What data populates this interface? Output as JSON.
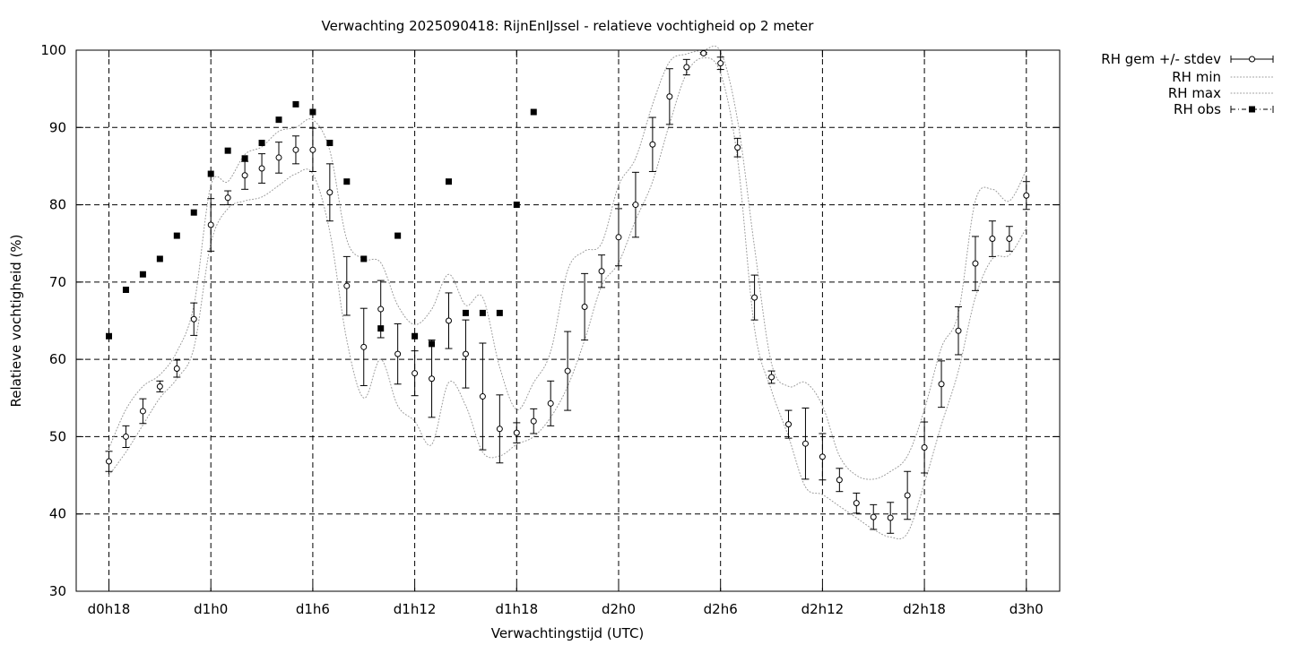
{
  "chart_data": {
    "type": "line",
    "title": "Verwachting 2025090418: RijnEnIJssel - relatieve vochtigheid op 2 meter",
    "xlabel": "Verwachtingstijd (UTC)",
    "ylabel": "Relatieve vochtigheid (%)",
    "xlim": [
      -0.5,
      57.2
    ],
    "ylim": [
      30,
      100
    ],
    "grid": true,
    "legend_position": "top-right outside plot",
    "x_ticks": [
      {
        "x": 0,
        "label": "d0h18"
      },
      {
        "x": 6,
        "label": "d1h0"
      },
      {
        "x": 12,
        "label": "d1h6"
      },
      {
        "x": 18,
        "label": "d1h12"
      },
      {
        "x": 24,
        "label": "d1h18"
      },
      {
        "x": 30,
        "label": "d2h0"
      },
      {
        "x": 36,
        "label": "d2h6"
      },
      {
        "x": 42,
        "label": "d2h12"
      },
      {
        "x": 48,
        "label": "d2h18"
      },
      {
        "x": 54,
        "label": "d3h0"
      }
    ],
    "y_ticks": [
      30,
      40,
      50,
      60,
      70,
      80,
      90,
      100
    ],
    "series": [
      {
        "name": "RH gem +/- stdev",
        "style": "errorbar",
        "x": [
          0,
          1,
          2,
          3,
          4,
          5,
          6,
          7,
          8,
          9,
          10,
          11,
          12,
          13,
          14,
          15,
          16,
          17,
          18,
          19,
          20,
          21,
          22,
          23,
          24,
          25,
          26,
          27,
          28,
          29,
          30,
          31,
          32,
          33,
          34,
          35,
          36,
          37,
          38,
          39,
          40,
          41,
          42,
          43,
          44,
          45,
          46,
          47,
          48,
          49,
          50,
          51,
          52,
          53,
          54
        ],
        "mean": [
          46.8,
          50.0,
          53.3,
          56.5,
          58.8,
          65.2,
          77.4,
          80.9,
          83.8,
          84.7,
          86.1,
          87.1,
          87.1,
          81.6,
          69.5,
          61.6,
          66.5,
          60.7,
          58.2,
          57.5,
          65.0,
          60.7,
          55.2,
          51.0,
          50.5,
          52.0,
          54.3,
          58.5,
          66.8,
          71.4,
          75.8,
          80.0,
          87.8,
          94.0,
          97.8,
          99.6,
          98.3,
          87.4,
          68.0,
          57.7,
          51.6,
          49.1,
          47.4,
          44.4,
          41.4,
          39.6,
          39.5,
          42.4,
          48.6,
          56.8,
          63.7,
          72.4,
          75.6,
          75.6,
          81.2
        ],
        "stdev": [
          1.3,
          1.4,
          1.6,
          0.7,
          1.1,
          2.1,
          3.4,
          0.9,
          1.8,
          1.9,
          2.0,
          1.8,
          2.8,
          3.7,
          3.8,
          5.0,
          3.7,
          3.9,
          2.9,
          5.0,
          3.6,
          4.4,
          6.9,
          4.4,
          1.3,
          1.6,
          2.9,
          5.1,
          4.3,
          2.1,
          3.7,
          4.2,
          3.5,
          3.6,
          1.0,
          0.1,
          0.8,
          1.2,
          2.9,
          0.8,
          1.8,
          4.6,
          3.0,
          1.5,
          1.3,
          1.6,
          2.0,
          3.1,
          3.3,
          3.0,
          3.1,
          3.5,
          2.3,
          1.6,
          1.8
        ]
      },
      {
        "name": "RH min",
        "style": "dotted",
        "x": [
          0,
          1,
          2,
          3,
          4,
          5,
          6,
          7,
          8,
          9,
          10,
          11,
          12,
          13,
          14,
          15,
          16,
          17,
          18,
          19,
          20,
          21,
          22,
          23,
          24,
          25,
          26,
          27,
          28,
          29,
          30,
          31,
          32,
          33,
          34,
          35,
          36,
          37,
          38,
          39,
          40,
          41,
          42,
          43,
          44,
          45,
          46,
          47,
          48,
          49,
          50,
          51,
          52,
          53,
          54
        ],
        "values": [
          45.0,
          48.0,
          51.5,
          55.0,
          57.5,
          61.5,
          75.0,
          79.5,
          80.5,
          81.0,
          82.5,
          84.0,
          84.0,
          76.5,
          62.5,
          55.0,
          60.0,
          54.0,
          52.0,
          49.0,
          57.0,
          54.0,
          48.0,
          47.5,
          49.0,
          50.0,
          52.5,
          56.5,
          62.5,
          69.5,
          72.5,
          78.0,
          83.0,
          90.5,
          97.0,
          99.0,
          97.0,
          86.0,
          64.0,
          56.0,
          50.0,
          43.5,
          42.5,
          41.0,
          39.5,
          38.0,
          37.0,
          37.5,
          44.0,
          51.5,
          58.5,
          68.0,
          73.0,
          73.5,
          77.0
        ]
      },
      {
        "name": "RH max",
        "style": "dotted",
        "x": [
          0,
          1,
          2,
          3,
          4,
          5,
          6,
          7,
          8,
          9,
          10,
          11,
          12,
          13,
          14,
          15,
          16,
          17,
          18,
          19,
          20,
          21,
          22,
          23,
          24,
          25,
          26,
          27,
          28,
          29,
          30,
          31,
          32,
          33,
          34,
          35,
          36,
          37,
          38,
          39,
          40,
          41,
          42,
          43,
          44,
          45,
          46,
          47,
          48,
          49,
          50,
          51,
          52,
          53,
          54
        ],
        "values": [
          48.5,
          53.5,
          56.5,
          58.0,
          61.0,
          67.0,
          82.5,
          83.0,
          86.5,
          87.5,
          89.5,
          90.0,
          91.0,
          87.0,
          75.5,
          73.0,
          72.5,
          67.0,
          64.5,
          66.5,
          71.0,
          67.0,
          68.0,
          59.0,
          53.5,
          57.0,
          61.0,
          71.5,
          74.0,
          75.0,
          82.5,
          86.0,
          93.0,
          98.5,
          99.5,
          100.0,
          99.8,
          91.0,
          74.5,
          59.5,
          56.5,
          57.0,
          54.0,
          47.5,
          45.0,
          44.5,
          45.5,
          47.5,
          53.5,
          61.5,
          66.0,
          80.5,
          82.0,
          80.5,
          84.5
        ]
      },
      {
        "name": "RH obs",
        "style": "points",
        "x": [
          0,
          1,
          2,
          3,
          4,
          5,
          6,
          7,
          8,
          9,
          10,
          11,
          12,
          13,
          14,
          15,
          16,
          17,
          18,
          19,
          20,
          21,
          22,
          23,
          24,
          25
        ],
        "values": [
          63,
          69,
          71,
          73,
          76,
          79,
          84,
          87,
          86,
          88,
          91,
          93,
          92,
          88,
          83,
          73,
          64,
          76,
          63,
          62,
          83,
          66,
          66,
          66,
          80,
          92
        ]
      }
    ]
  }
}
